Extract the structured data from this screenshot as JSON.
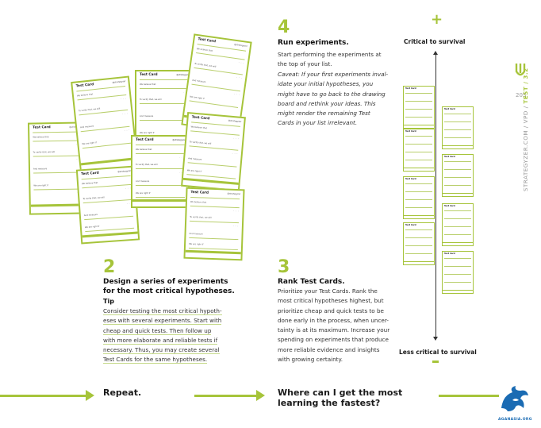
{
  "step4": {
    "number": "4",
    "heading": "Run experiments.",
    "line1": "Start performing the experiments at",
    "line2": "the top of your list.",
    "caveat": [
      "Caveat: If your first experiments inval-",
      "idate your initial hypotheses, you",
      "might have to go back to the drawing",
      "board and rethink your ideas. This",
      "might render the remaining Test",
      "Cards in your list irrelevant."
    ]
  },
  "step2": {
    "number": "2",
    "heading_line1": "Design a series of experiments",
    "heading_line2": "for the most critical hypotheses.",
    "tip_label": "Tip",
    "tip_lines": [
      "Consider testing the most critical hypoth-",
      "eses with several experiments. Start with",
      "cheap and quick tests. Then follow up",
      "with more elaborate and reliable tests if",
      "necessary. Thus, you may create several",
      "Test Cards for the same hypotheses."
    ]
  },
  "step3": {
    "number": "3",
    "heading": "Rank Test Cards.",
    "lines": [
      "Prioritize your Test Cards. Rank the",
      "most critical hypotheses highest, but",
      "prioritize cheap and quick tests to be",
      "done early in the process, when uncer-",
      "tainty is at its maximum. Increase your",
      "spending on experiments that produce",
      "more reliable evidence and insights",
      "with growing certainty."
    ]
  },
  "scale": {
    "plus": "+",
    "top_label": "Critical to survival",
    "bottom_label": "Less critical to survival",
    "minus": "-"
  },
  "side": {
    "page_number": "205",
    "nav_text_1": "STRATEGYZER.COM / VPD / ",
    "nav_text_2": "TEST / 3.2"
  },
  "footer": {
    "repeat": "Repeat.",
    "question_line1": "Where can I get the most",
    "question_line2": "learning the fastest?",
    "logo_text": "AGANASIA.ORG"
  },
  "card": {
    "title": "Test Card",
    "sub": "@strategyzer",
    "f1": "We believe that",
    "f2": "To verify that, we will",
    "f3": "And measure",
    "f4": "We are right if"
  },
  "colors": {
    "accent": "#a6c43a",
    "logo": "#1a6bb3"
  }
}
